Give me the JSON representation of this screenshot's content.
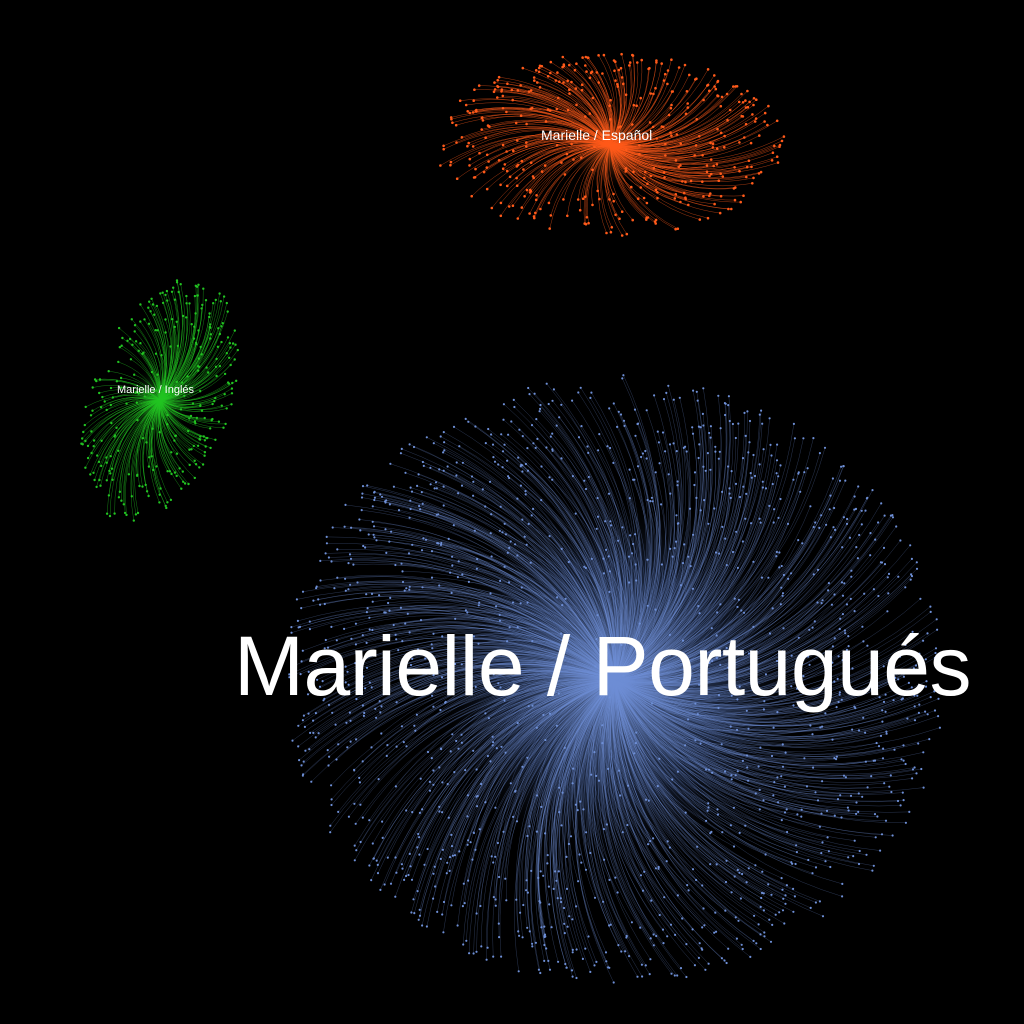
{
  "clusters": [
    {
      "id": "espanol",
      "label": "Marielle / Español",
      "color": "#ff5a1a"
    },
    {
      "id": "ingles",
      "label": "Marielle / Inglés",
      "color": "#22c422"
    },
    {
      "id": "portugues",
      "label": "Marielle / Portugués",
      "color": "#6e8fd6"
    }
  ],
  "background": "#000000"
}
